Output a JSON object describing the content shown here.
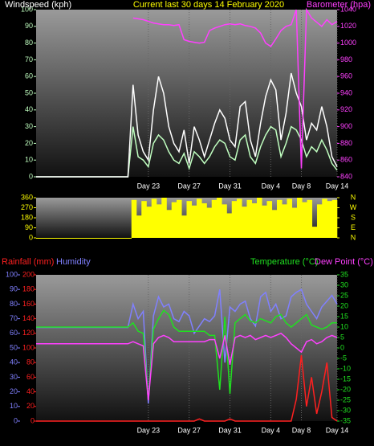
{
  "chart_data": [
    {
      "type": "line",
      "title": "Current last 30 days 14 February 2020",
      "categories": [
        null,
        null,
        null,
        null,
        null,
        null,
        null,
        null,
        null,
        null,
        null,
        null,
        null,
        null,
        null,
        null,
        null,
        null,
        null,
        null,
        null,
        null,
        "Day 23",
        null,
        null,
        null,
        null,
        null,
        null,
        null,
        "Day 27",
        null,
        null,
        null,
        null,
        null,
        null,
        null,
        "Day 31",
        null,
        null,
        null,
        null,
        null,
        null,
        null,
        "Day 4",
        null,
        null,
        null,
        null,
        null,
        "Day 8",
        null,
        null,
        null,
        null,
        null,
        null,
        "Day 14"
      ],
      "ylim": [
        0,
        100
      ],
      "yticks": [
        0,
        10,
        20,
        30,
        40,
        50,
        60,
        70,
        80,
        90,
        100
      ],
      "y2lim": [
        840,
        1040
      ],
      "y2ticks": [
        840,
        860,
        880,
        900,
        920,
        940,
        960,
        980,
        1000,
        1020,
        1040
      ],
      "series": [
        {
          "color": "#c0ffc0",
          "values": [
            0,
            0,
            0,
            0,
            0,
            0,
            0,
            0,
            0,
            0,
            0,
            0,
            0,
            0,
            0,
            0,
            0,
            0,
            0,
            30,
            12,
            10,
            6,
            20,
            25,
            22,
            15,
            10,
            8,
            14,
            5,
            15,
            12,
            8,
            12,
            18,
            22,
            20,
            12,
            10,
            22,
            25,
            12,
            8,
            18,
            25,
            30,
            28,
            12,
            20,
            30,
            28,
            22,
            12,
            18,
            15,
            22,
            16,
            8,
            4
          ]
        },
        {
          "name": "Windspeed (kph)",
          "color": "#ffffff",
          "values": [
            0,
            0,
            0,
            0,
            0,
            0,
            0,
            0,
            0,
            0,
            0,
            0,
            0,
            0,
            0,
            0,
            0,
            0,
            0,
            55,
            25,
            15,
            10,
            40,
            60,
            50,
            30,
            20,
            15,
            28,
            8,
            30,
            22,
            12,
            22,
            32,
            40,
            35,
            22,
            18,
            42,
            45,
            22,
            12,
            32,
            48,
            58,
            52,
            22,
            38,
            62,
            50,
            42,
            22,
            32,
            28,
            42,
            30,
            12,
            6
          ]
        },
        {
          "name": "Barometer (hpa)",
          "color": "#ff40ff",
          "axis": "y2",
          "values": [
            null,
            null,
            null,
            null,
            null,
            null,
            null,
            null,
            null,
            null,
            null,
            null,
            null,
            null,
            null,
            null,
            null,
            null,
            null,
            1030,
            1029,
            1028,
            1026,
            1024,
            1023,
            1022,
            1022,
            1021,
            1022,
            1004,
            1002,
            1001,
            1000,
            1001,
            1015,
            1018,
            1020,
            1022,
            1023,
            1022,
            1023,
            1021,
            1020,
            1018,
            1012,
            1000,
            996,
            1005,
            1015,
            1020,
            1022,
            1040,
            850,
            1040,
            1030,
            1025,
            1020,
            1028,
            1022,
            1026
          ]
        }
      ]
    },
    {
      "type": "bar",
      "ylim": [
        0,
        360
      ],
      "yticks": [
        0,
        90,
        180,
        270,
        360
      ],
      "y2lim": [
        0,
        360
      ],
      "y2ticks": [
        {
          "value": 0,
          "label": "N"
        },
        {
          "value": 90,
          "label": "E"
        },
        {
          "value": 180,
          "label": "S"
        },
        {
          "value": 270,
          "label": "W"
        },
        {
          "value": 360,
          "label": "N"
        }
      ],
      "color": "#ffff00",
      "values": [
        0,
        0,
        0,
        0,
        0,
        0,
        0,
        0,
        0,
        0,
        0,
        0,
        0,
        0,
        0,
        0,
        0,
        0,
        0,
        340,
        200,
        330,
        280,
        350,
        300,
        360,
        250,
        320,
        340,
        200,
        330,
        290,
        350,
        310,
        270,
        340,
        360,
        300,
        220,
        330,
        350,
        280,
        340,
        310,
        360,
        290,
        330,
        250,
        340,
        300,
        350,
        270,
        360,
        320,
        340,
        100,
        300,
        350,
        330,
        340
      ]
    },
    {
      "type": "line",
      "categories": [
        null,
        null,
        null,
        null,
        null,
        null,
        null,
        null,
        null,
        null,
        null,
        null,
        null,
        null,
        null,
        null,
        null,
        null,
        null,
        null,
        null,
        null,
        "Day 23",
        null,
        null,
        null,
        null,
        null,
        null,
        null,
        "Day 27",
        null,
        null,
        null,
        null,
        null,
        null,
        null,
        "Day 31",
        null,
        null,
        null,
        null,
        null,
        null,
        null,
        "Day 4",
        null,
        null,
        null,
        null,
        null,
        "Day 8",
        null,
        null,
        null,
        null,
        null,
        null,
        "Day 14"
      ],
      "ylim": [
        0,
        100
      ],
      "yticks": [
        0,
        10,
        20,
        30,
        40,
        50,
        60,
        70,
        80,
        90,
        100
      ],
      "y2lim": [
        -35,
        35
      ],
      "y2ticks": [
        -35,
        -30,
        -25,
        -20,
        -15,
        -10,
        -5,
        0,
        5,
        10,
        15,
        20,
        25,
        30,
        35
      ],
      "y3lim": [
        0,
        200
      ],
      "y3ticks": [
        0,
        20,
        40,
        60,
        80,
        100,
        120,
        140,
        160,
        180,
        200
      ],
      "series": [
        {
          "name": "Humidity",
          "color": "#8080ff",
          "values": [
            64,
            64,
            64,
            64,
            64,
            64,
            64,
            64,
            64,
            64,
            64,
            64,
            64,
            64,
            64,
            64,
            64,
            64,
            64,
            80,
            70,
            75,
            12,
            72,
            85,
            78,
            80,
            70,
            68,
            75,
            72,
            60,
            65,
            70,
            68,
            72,
            90,
            40,
            78,
            75,
            80,
            82,
            70,
            65,
            85,
            88,
            75,
            80,
            70,
            72,
            85,
            88,
            90,
            80,
            75,
            70,
            78,
            82,
            86,
            80
          ]
        },
        {
          "name": "Temperature (°C)",
          "color": "#20e020",
          "axis": "y2",
          "values": [
            10,
            10,
            10,
            10,
            10,
            10,
            10,
            10,
            10,
            10,
            10,
            10,
            10,
            10,
            10,
            10,
            10,
            10,
            10,
            12,
            8,
            7,
            -25,
            9,
            14,
            18,
            16,
            10,
            8,
            8,
            8,
            8,
            8,
            8,
            6,
            6,
            -20,
            15,
            -22,
            12,
            14,
            16,
            13,
            12,
            14,
            13,
            12,
            15,
            16,
            12,
            10,
            12,
            14,
            16,
            11,
            10,
            9,
            10,
            12,
            12
          ]
        },
        {
          "name": "Dew Point (°C)",
          "color": "#ff40ff",
          "axis": "y2",
          "values": [
            2,
            2,
            2,
            2,
            2,
            2,
            2,
            2,
            2,
            2,
            2,
            2,
            2,
            2,
            2,
            2,
            2,
            2,
            2,
            3,
            2,
            1,
            -25,
            2,
            5,
            6,
            5,
            3,
            3,
            3,
            3,
            3,
            3,
            3,
            4,
            4,
            -5,
            6,
            -8,
            5,
            6,
            5,
            6,
            4,
            5,
            6,
            5,
            6,
            7,
            5,
            2,
            0,
            -2,
            3,
            4,
            2,
            3,
            5,
            6,
            5
          ]
        },
        {
          "name": "Rainfall (mm)",
          "color": "#ff2020",
          "axis": "y3",
          "values": [
            0,
            0,
            0,
            0,
            0,
            0,
            0,
            0,
            0,
            0,
            0,
            0,
            0,
            0,
            0,
            0,
            0,
            0,
            0,
            0,
            0,
            0,
            0,
            0,
            0,
            0,
            0,
            0,
            0,
            0,
            0,
            0,
            3,
            0,
            0,
            0,
            0,
            0,
            3,
            0,
            0,
            0,
            0,
            0,
            0,
            0,
            0,
            0,
            0,
            0,
            0,
            30,
            90,
            20,
            60,
            10,
            40,
            80,
            5,
            0
          ]
        }
      ]
    }
  ]
}
